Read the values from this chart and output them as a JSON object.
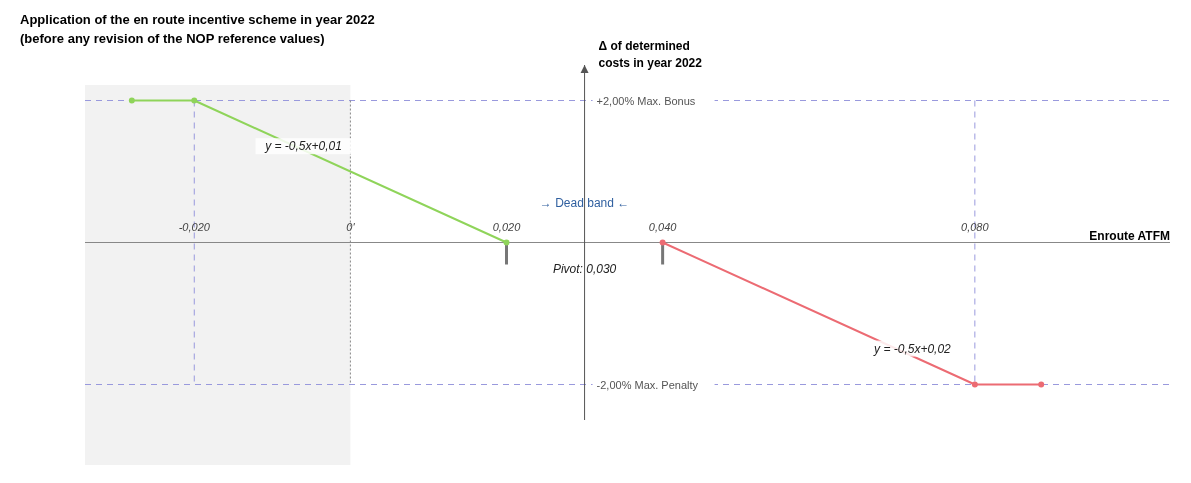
{
  "chart_data": {
    "type": "line",
    "title": "Application of the en route incentive scheme in year 2022",
    "subtitle": "(before any revision of the NOP reference values)",
    "xlabel": "Enroute ATFM",
    "ylabel": "Δ of determined costs in year 2022",
    "xlim": [
      -0.034,
      0.105
    ],
    "ylim": [
      -2.5,
      2.5
    ],
    "xticks": [
      {
        "value": -0.02,
        "label": "-0,020"
      },
      {
        "value": 0,
        "label": "0'"
      },
      {
        "value": 0.02,
        "label": "0,020"
      },
      {
        "value": 0.04,
        "label": "0,040"
      },
      {
        "value": 0.08,
        "label": "0,080"
      }
    ],
    "yticks": [
      {
        "value": 2,
        "label": "+2,00% Max. Bonus"
      },
      {
        "value": -2,
        "label": "-2,00% Max. Penalty"
      }
    ],
    "series": [
      {
        "color": "#8fd45a",
        "x": [
          -0.028,
          -0.02,
          0.02
        ],
        "values": [
          2,
          2,
          0
        ]
      },
      {
        "color": "#ec6b73",
        "x": [
          0.04,
          0.08,
          0.0885
        ],
        "values": [
          0,
          -2,
          -2
        ]
      }
    ],
    "marker": "circle",
    "line_style": "solid",
    "grid": false,
    "bands": [
      {
        "axis": "x",
        "from": -0.034,
        "to": 0,
        "color": "#f2f2f2"
      }
    ],
    "ref_lines": [
      {
        "axis": "y",
        "value": 2,
        "color": "#9999dd",
        "line_style": "dashed"
      },
      {
        "axis": "y",
        "value": -2,
        "color": "#9999dd",
        "line_style": "dashed"
      },
      {
        "axis": "x",
        "value": -0.02,
        "color": "#9999dd",
        "line_style": "dashed"
      },
      {
        "axis": "x",
        "value": 0,
        "color": "#888888",
        "line_style": "dotted"
      },
      {
        "axis": "x",
        "value": 0.08,
        "color": "#9999dd",
        "line_style": "dashed"
      }
    ],
    "annotations": [
      "y = -0,5x+0,01",
      "y = -0,5x+0,02",
      "→ Dead band ←",
      "Pivot: 0,030"
    ]
  }
}
